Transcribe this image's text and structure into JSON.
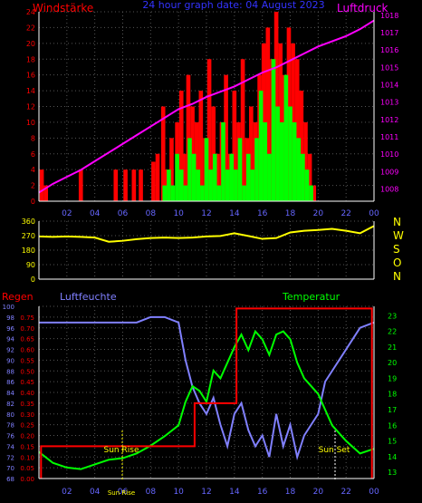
{
  "colors": {
    "wind_avg": "#00ff00",
    "wind_gust": "#ff0000",
    "pressure": "#ff00ff",
    "direction": "#ffff00",
    "humidity": "#8080ff",
    "temperature": "#00ff00",
    "rain": "#ff0000",
    "axis": "#ffffff",
    "grid": "#555555"
  },
  "chart_data": [
    {
      "type": "bar",
      "title": "24 hour graph date: 04 August 2023",
      "left_axis_label": "Windstärke",
      "right_axis_label": "Luftdruck",
      "x_ticks": [
        "02",
        "04",
        "06",
        "08",
        "10",
        "12",
        "14",
        "16",
        "18",
        "20",
        "22",
        "00"
      ],
      "y_left_ticks": [
        "0",
        "2",
        "4",
        "6",
        "8",
        "10",
        "12",
        "14",
        "16",
        "18",
        "20",
        "22",
        "24"
      ],
      "y_left_range": [
        0,
        24
      ],
      "y_right_ticks": [
        "1008",
        "1009",
        "1010",
        "1011",
        "1012",
        "1013",
        "1014",
        "1015",
        "1016",
        "1017",
        "1018"
      ],
      "y_right_range": [
        1007.3,
        1018.2
      ],
      "grid": true,
      "series": [
        {
          "name": "Windstärke gust",
          "x": [
            0.2,
            0.5,
            3.0,
            5.5,
            6.2,
            6.8,
            7.3,
            8.2,
            8.5,
            8.9,
            9.2,
            9.5,
            9.9,
            10.2,
            10.4,
            10.7,
            11.0,
            11.3,
            11.6,
            11.9,
            12.2,
            12.5,
            12.8,
            13.1,
            13.4,
            13.7,
            14.0,
            14.3,
            14.6,
            14.9,
            15.2,
            15.5,
            15.8,
            16.1,
            16.4,
            16.7,
            17.0,
            17.3,
            17.6,
            17.9,
            18.2,
            18.5,
            18.8,
            19.1,
            19.4,
            19.7
          ],
          "values": [
            4,
            2,
            4,
            4,
            4,
            4,
            4,
            5,
            6,
            12,
            4,
            8,
            10,
            14,
            6,
            16,
            12,
            10,
            14,
            8,
            18,
            12,
            6,
            10,
            16,
            6,
            14,
            10,
            18,
            8,
            12,
            10,
            16,
            20,
            22,
            18,
            24,
            20,
            16,
            22,
            20,
            18,
            14,
            10,
            6,
            2
          ]
        },
        {
          "name": "Windstärke mean",
          "x": [
            9.0,
            9.3,
            9.6,
            9.9,
            10.2,
            10.5,
            10.8,
            11.1,
            11.4,
            11.7,
            12.0,
            12.3,
            12.6,
            12.9,
            13.2,
            13.5,
            13.8,
            14.1,
            14.4,
            14.7,
            15.0,
            15.3,
            15.6,
            15.9,
            16.2,
            16.5,
            16.8,
            17.1,
            17.4,
            17.7,
            18.0,
            18.3,
            18.6,
            18.9,
            19.2,
            19.5
          ],
          "values": [
            2,
            4,
            2,
            6,
            4,
            2,
            8,
            6,
            4,
            2,
            8,
            4,
            6,
            2,
            10,
            4,
            6,
            4,
            8,
            2,
            6,
            4,
            8,
            14,
            10,
            6,
            18,
            12,
            10,
            16,
            12,
            10,
            8,
            6,
            4,
            2
          ]
        },
        {
          "name": "Luftdruck",
          "x": [
            0,
            1,
            2,
            3,
            4,
            5,
            6,
            7,
            8,
            9,
            10,
            11,
            12,
            13,
            14,
            15,
            16,
            17,
            18,
            19,
            20,
            21,
            22,
            23,
            24
          ],
          "values": [
            1007.8,
            1008.3,
            1008.7,
            1009.1,
            1009.6,
            1010.1,
            1010.6,
            1011.1,
            1011.6,
            1012.1,
            1012.6,
            1012.9,
            1013.3,
            1013.6,
            1013.9,
            1014.3,
            1014.7,
            1015.0,
            1015.4,
            1015.8,
            1016.2,
            1016.5,
            1016.8,
            1017.2,
            1017.7
          ]
        }
      ]
    },
    {
      "type": "line",
      "right_axis_letters": [
        "N",
        "W",
        "S",
        "O",
        "N"
      ],
      "y_ticks": [
        "0",
        "90",
        "180",
        "270",
        "360"
      ],
      "y_range": [
        0,
        360
      ],
      "grid": true,
      "series": [
        {
          "name": "direction",
          "x": [
            0,
            1,
            2,
            3,
            4,
            5,
            6,
            7,
            8,
            9,
            10,
            11,
            12,
            13,
            14,
            15,
            16,
            17,
            18,
            19,
            20,
            21,
            22,
            23,
            24
          ],
          "values": [
            265,
            262,
            265,
            262,
            258,
            232,
            238,
            248,
            255,
            258,
            255,
            258,
            265,
            268,
            285,
            268,
            250,
            255,
            290,
            300,
            305,
            312,
            300,
            285,
            330
          ]
        }
      ]
    },
    {
      "type": "line",
      "labels": {
        "rain": "Regen",
        "humidity": "Luftfeuchte",
        "temperature": "Temperatur"
      },
      "annotations": [
        "Sun Rise",
        "Sun Set",
        "Sun Rise"
      ],
      "x_ticks": [
        "02",
        "04",
        "06",
        "08",
        "10",
        "12",
        "14",
        "16",
        "18",
        "20",
        "22",
        "00"
      ],
      "y_humidity_ticks": [
        "68",
        "70",
        "72",
        "74",
        "76",
        "78",
        "80",
        "82",
        "84",
        "86",
        "88",
        "90",
        "92",
        "94",
        "96",
        "98",
        "100"
      ],
      "y_humidity_range": [
        68,
        100
      ],
      "y_rain_ticks": [
        "0.00",
        "0.05",
        "0.10",
        "0.15",
        "0.20",
        "0.25",
        "0.30",
        "0.35",
        "0.40",
        "0.45",
        "0.50",
        "0.55",
        "0.60",
        "0.65",
        "0.70",
        "0.75"
      ],
      "y_rain_range": [
        0,
        0.8
      ],
      "y_temperature_ticks": [
        "13",
        "14",
        "15",
        "16",
        "17",
        "18",
        "19",
        "20",
        "21",
        "22",
        "23"
      ],
      "y_temperature_range": [
        12.6,
        23.6
      ],
      "grid": true,
      "series": [
        {
          "name": "Luftfeuchte",
          "x": [
            0,
            1,
            2,
            3,
            4,
            5,
            6,
            7,
            8,
            9,
            10,
            10.5,
            11,
            11.5,
            12,
            12.5,
            13,
            13.5,
            14,
            14.5,
            15,
            15.5,
            16,
            16.5,
            17,
            17.5,
            18,
            18.5,
            19,
            19.5,
            20,
            20.5,
            21,
            22,
            23,
            24
          ],
          "values": [
            97,
            97,
            97,
            97,
            97,
            97,
            97,
            97,
            98,
            98,
            97,
            90,
            85,
            82,
            80,
            83,
            78,
            74,
            80,
            82,
            77,
            74,
            76,
            72,
            80,
            74,
            78,
            72,
            76,
            78,
            80,
            86,
            88,
            92,
            96,
            97
          ]
        },
        {
          "name": "Temperatur",
          "x": [
            0,
            1,
            2,
            3,
            4,
            5,
            6,
            7,
            8,
            9,
            10,
            10.5,
            11,
            11.5,
            12,
            12.5,
            13,
            13.5,
            14,
            14.5,
            15,
            15.5,
            16,
            16.5,
            17,
            17.5,
            18,
            18.5,
            19,
            19.5,
            20,
            20.5,
            21,
            22,
            23,
            24
          ],
          "values": [
            14.3,
            13.6,
            13.3,
            13.2,
            13.5,
            13.8,
            13.9,
            14.2,
            14.7,
            15.3,
            16.0,
            17.5,
            18.5,
            18.2,
            17.5,
            19.5,
            19.0,
            20.0,
            21.0,
            21.8,
            20.8,
            22.0,
            21.5,
            20.5,
            21.8,
            22.0,
            21.5,
            20.0,
            19.0,
            18.5,
            18.0,
            17.0,
            16.0,
            15.0,
            14.2,
            14.5
          ]
        },
        {
          "name": "Regen",
          "x": [
            0.15,
            0.15,
            11.15,
            11.15,
            14.15,
            14.15,
            23.85,
            23.85
          ],
          "values": [
            0,
            0.15,
            0.15,
            0.35,
            0.35,
            0.79,
            0.79,
            0
          ]
        }
      ]
    }
  ]
}
